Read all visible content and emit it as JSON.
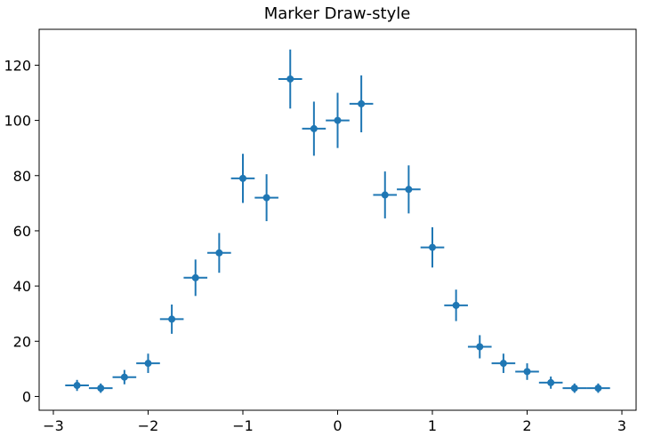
{
  "chart_data": {
    "type": "scatter",
    "title": "Marker Draw-style",
    "xlabel": "",
    "ylabel": "",
    "xlim": [
      -3.15,
      3.15
    ],
    "ylim": [
      -5,
      133
    ],
    "x_ticks": [
      -3,
      -2,
      -1,
      0,
      1,
      2,
      3
    ],
    "y_ticks": [
      0,
      20,
      40,
      60,
      80,
      100,
      120
    ],
    "grid": false,
    "legend": "none",
    "marker_color": "#1f77b4",
    "x_error_halfwidth": 0.125,
    "series": [
      {
        "x": [
          -2.75,
          -2.5,
          -2.25,
          -2.0,
          -1.75,
          -1.5,
          -1.25,
          -1.0,
          -0.75,
          -0.5,
          -0.25,
          0.0,
          0.25,
          0.5,
          0.75,
          1.0,
          1.25,
          1.5,
          1.75,
          2.0,
          2.25,
          2.5,
          2.75
        ],
        "y": [
          4,
          3,
          7,
          12,
          28,
          43,
          52,
          79,
          72,
          115,
          97,
          100,
          106,
          73,
          75,
          54,
          33,
          18,
          12,
          9,
          5,
          3,
          3
        ],
        "y_err": [
          2.0,
          1.7,
          2.6,
          3.5,
          5.3,
          6.6,
          7.2,
          8.9,
          8.5,
          10.7,
          9.8,
          10.0,
          10.3,
          8.5,
          8.7,
          7.3,
          5.7,
          4.2,
          3.5,
          3.0,
          2.2,
          1.7,
          1.7
        ]
      }
    ]
  }
}
